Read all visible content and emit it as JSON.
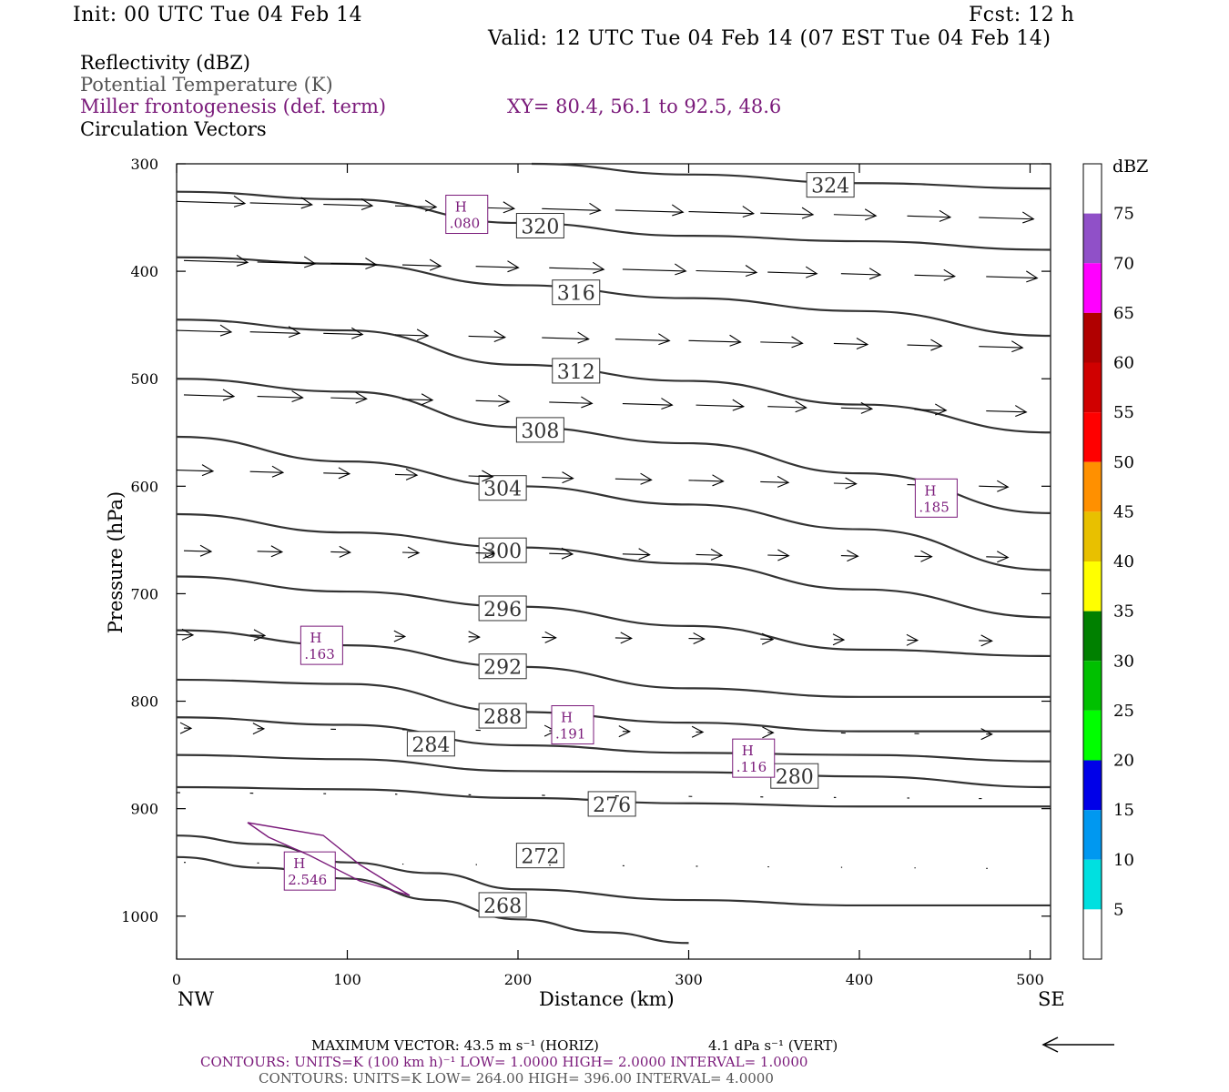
{
  "header": {
    "init": "Init: 00 UTC Tue 04 Feb 14",
    "fcst": "Fcst:   12 h",
    "valid": "Valid: 12 UTC Tue 04 Feb 14 (07 EST Tue 04 Feb 14)"
  },
  "fields": {
    "reflectivity": "Reflectivity (dBZ)",
    "theta": "Potential Temperature (K)",
    "miller": "Miller frontogenesis (def. term)",
    "xy": "XY=  80.4, 56.1 to  92.5, 48.6",
    "vectors": "Circulation Vectors"
  },
  "footer": {
    "max_vector": "MAXIMUM VECTOR:  43.5 m s⁻¹ (HORIZ)",
    "max_vector_vert": "4.1 dPa s⁻¹ (VERT)",
    "contours1": "CONTOURS:  UNITS=K (100 km h)⁻¹  LOW=   1.0000         HIGH=   2.0000         INTERVAL=    1.0000",
    "contours2": "CONTOURS:  UNITS=K  LOW=   264.00         HIGH=   396.00         INTERVAL=    4.0000"
  },
  "colors": {
    "contour": "#333333",
    "frontogenesis": "#7a1a7a",
    "vector": "#000000"
  },
  "chart_data": {
    "type": "line",
    "title": "",
    "xlabel": "Distance (km)",
    "ylabel": "Pressure (hPa)",
    "xlim": [
      0,
      512
    ],
    "ylim": [
      1040,
      300
    ],
    "x_ticks": [
      0,
      100,
      200,
      300,
      400,
      500
    ],
    "y_ticks": [
      300,
      400,
      500,
      600,
      700,
      800,
      900,
      1000
    ],
    "x_left_label": "NW",
    "x_right_label": "SE",
    "theta_contours": [
      {
        "label": "324",
        "points": [
          [
            208,
            300
          ],
          [
            300,
            310
          ],
          [
            400,
            318
          ],
          [
            512,
            323
          ]
        ],
        "label_at": [
          383,
          320
        ]
      },
      {
        "label": "320",
        "points": [
          [
            0,
            326
          ],
          [
            100,
            333
          ],
          [
            200,
            355
          ],
          [
            300,
            367
          ],
          [
            400,
            372
          ],
          [
            512,
            380
          ]
        ],
        "label_at": [
          213,
          358
        ]
      },
      {
        "label": "316",
        "points": [
          [
            0,
            387
          ],
          [
            100,
            393
          ],
          [
            200,
            413
          ],
          [
            300,
            425
          ],
          [
            400,
            437
          ],
          [
            512,
            460
          ]
        ],
        "label_at": [
          234,
          420
        ]
      },
      {
        "label": "312",
        "points": [
          [
            0,
            445
          ],
          [
            100,
            455
          ],
          [
            200,
            487
          ],
          [
            300,
            502
          ],
          [
            400,
            524
          ],
          [
            512,
            550
          ]
        ],
        "label_at": [
          234,
          493
        ]
      },
      {
        "label": "308",
        "points": [
          [
            0,
            500
          ],
          [
            100,
            512
          ],
          [
            200,
            545
          ],
          [
            300,
            560
          ],
          [
            400,
            588
          ],
          [
            512,
            625
          ]
        ],
        "label_at": [
          213,
          548
        ]
      },
      {
        "label": "304",
        "points": [
          [
            0,
            554
          ],
          [
            100,
            577
          ],
          [
            200,
            600
          ],
          [
            300,
            617
          ],
          [
            400,
            640
          ],
          [
            512,
            678
          ]
        ],
        "label_at": [
          191,
          602
        ]
      },
      {
        "label": "300",
        "points": [
          [
            0,
            626
          ],
          [
            100,
            643
          ],
          [
            200,
            657
          ],
          [
            300,
            672
          ],
          [
            400,
            696
          ],
          [
            512,
            722
          ]
        ],
        "label_at": [
          191,
          660
        ]
      },
      {
        "label": "296",
        "points": [
          [
            0,
            684
          ],
          [
            100,
            698
          ],
          [
            200,
            712
          ],
          [
            300,
            730
          ],
          [
            400,
            752
          ],
          [
            512,
            758
          ]
        ],
        "label_at": [
          191,
          714
        ]
      },
      {
        "label": "292",
        "points": [
          [
            0,
            734
          ],
          [
            100,
            748
          ],
          [
            200,
            768
          ],
          [
            300,
            788
          ],
          [
            400,
            796
          ],
          [
            512,
            796
          ]
        ],
        "label_at": [
          191,
          768
        ]
      },
      {
        "label": "288",
        "points": [
          [
            0,
            780
          ],
          [
            100,
            784
          ],
          [
            200,
            810
          ],
          [
            300,
            820
          ],
          [
            400,
            828
          ],
          [
            512,
            828
          ]
        ],
        "label_at": [
          191,
          814
        ]
      },
      {
        "label": "284",
        "points": [
          [
            0,
            815
          ],
          [
            100,
            822
          ],
          [
            200,
            841
          ],
          [
            300,
            848
          ],
          [
            400,
            850
          ],
          [
            512,
            856
          ]
        ],
        "label_at": [
          149,
          840
        ]
      },
      {
        "label": "280",
        "points": [
          [
            0,
            850
          ],
          [
            100,
            854
          ],
          [
            200,
            865
          ],
          [
            300,
            866
          ],
          [
            400,
            870
          ],
          [
            512,
            880
          ]
        ],
        "label_at": [
          362,
          870
        ]
      },
      {
        "label": "276",
        "points": [
          [
            0,
            880
          ],
          [
            100,
            882
          ],
          [
            200,
            890
          ],
          [
            300,
            895
          ],
          [
            400,
            898
          ],
          [
            512,
            898
          ]
        ],
        "label_at": [
          255,
          896
        ]
      },
      {
        "label": "272",
        "points": [
          [
            0,
            925
          ],
          [
            50,
            933
          ],
          [
            100,
            950
          ],
          [
            150,
            960
          ],
          [
            200,
            975
          ],
          [
            300,
            985
          ],
          [
            400,
            990
          ],
          [
            512,
            990
          ]
        ],
        "label_at": [
          213,
          944
        ]
      },
      {
        "label": "268",
        "points": [
          [
            0,
            945
          ],
          [
            50,
            955
          ],
          [
            100,
            965
          ],
          [
            150,
            985
          ],
          [
            200,
            1003
          ],
          [
            250,
            1015
          ],
          [
            300,
            1025
          ]
        ],
        "label_at": [
          191,
          990
        ]
      }
    ],
    "frontogenesis_maxima": [
      {
        "label": "H",
        "value": ".080",
        "at": [
          170,
          347
        ]
      },
      {
        "label": "H",
        "value": ".185",
        "at": [
          445,
          611
        ]
      },
      {
        "label": "H",
        "value": ".163",
        "at": [
          85,
          748
        ]
      },
      {
        "label": "H",
        "value": ".191",
        "at": [
          232,
          822
        ]
      },
      {
        "label": "H",
        "value": ".116",
        "at": [
          338,
          853
        ]
      },
      {
        "label": "H",
        "value": "2.546",
        "at": [
          78,
          958
        ]
      }
    ],
    "colorbar": {
      "label": "dBZ",
      "levels": [
        5,
        10,
        15,
        20,
        25,
        30,
        35,
        40,
        45,
        50,
        55,
        60,
        65,
        70,
        75
      ],
      "colors": [
        "#ffffff",
        "#00e0e0",
        "#0098f0",
        "#0000e8",
        "#00ff00",
        "#00c000",
        "#008000",
        "#ffff00",
        "#e8c000",
        "#ff9000",
        "#ff0000",
        "#d00000",
        "#b00000",
        "#ff00ff",
        "#9050c8",
        "#ffffff"
      ]
    }
  }
}
